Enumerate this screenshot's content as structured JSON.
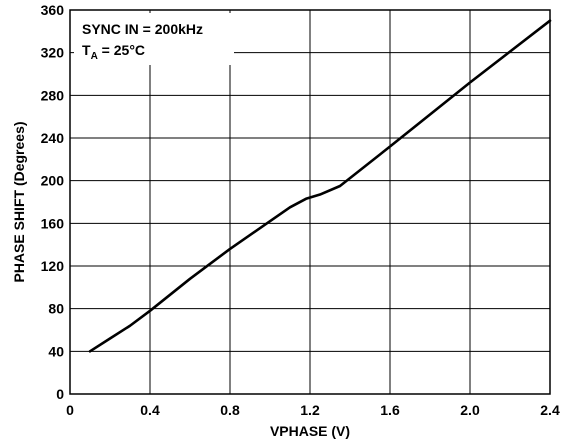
{
  "chart_data": {
    "type": "line",
    "xlabel": "VPHASE (V)",
    "ylabel": "PHASE SHIFT (Degrees)",
    "xlim": [
      0,
      2.4
    ],
    "ylim": [
      0,
      360
    ],
    "x_ticks": [
      0,
      0.4,
      0.8,
      1.2,
      1.6,
      2.0,
      2.4
    ],
    "x_tick_labels": [
      "0",
      "0.4",
      "0.8",
      "1.2",
      "1.6",
      "2.0",
      "2.4"
    ],
    "y_ticks": [
      0,
      40,
      80,
      120,
      160,
      200,
      240,
      280,
      320,
      360
    ],
    "y_tick_labels": [
      "0",
      "40",
      "80",
      "120",
      "160",
      "200",
      "240",
      "280",
      "320",
      "360"
    ],
    "grid": true,
    "annotations": {
      "line1": "SYNC IN = 200kHz",
      "line2_main": "T",
      "line2_sub": "A",
      "line2_rest": " = 25°C"
    },
    "series": [
      {
        "x": [
          0.1,
          0.2,
          0.3,
          0.4,
          0.6,
          0.8,
          1.0,
          1.1,
          1.18,
          1.25,
          1.35,
          1.6,
          2.0,
          2.4
        ],
        "y": [
          40,
          52,
          64,
          78,
          108,
          136,
          162,
          175,
          183,
          187,
          195,
          232,
          292,
          350
        ]
      }
    ],
    "line_color": "#000000"
  }
}
